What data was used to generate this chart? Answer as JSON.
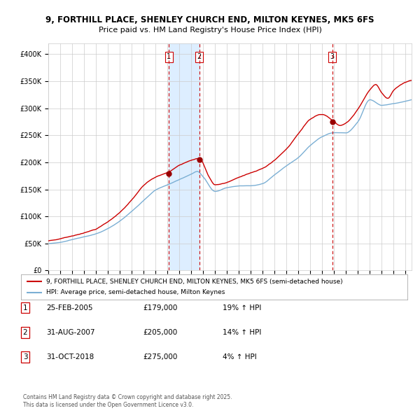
{
  "title_line1": "9, FORTHILL PLACE, SHENLEY CHURCH END, MILTON KEYNES, MK5 6FS",
  "title_line2": "Price paid vs. HM Land Registry's House Price Index (HPI)",
  "ylim": [
    0,
    420000
  ],
  "yticks": [
    0,
    50000,
    100000,
    150000,
    200000,
    250000,
    300000,
    350000,
    400000
  ],
  "ytick_labels": [
    "£0",
    "£50K",
    "£100K",
    "£150K",
    "£200K",
    "£250K",
    "£300K",
    "£350K",
    "£400K"
  ],
  "legend_line1": "9, FORTHILL PLACE, SHENLEY CHURCH END, MILTON KEYNES, MK5 6FS (semi-detached house)",
  "legend_line2": "HPI: Average price, semi-detached house, Milton Keynes",
  "sale_dates_display": [
    "25-FEB-2005",
    "31-AUG-2007",
    "31-OCT-2018"
  ],
  "sale_prices_display": [
    "£179,000",
    "£205,000",
    "£275,000"
  ],
  "sale_prices": [
    179000,
    205000,
    275000
  ],
  "sale_hpi": [
    "19% ↑ HPI",
    "14% ↑ HPI",
    "4% ↑ HPI"
  ],
  "sale_labels": [
    "1",
    "2",
    "3"
  ],
  "sale_year_floats": [
    2005.125,
    2007.667,
    2018.833
  ],
  "footnote1": "Contains HM Land Registry data © Crown copyright and database right 2025.",
  "footnote2": "This data is licensed under the Open Government Licence v3.0.",
  "red_color": "#cc0000",
  "blue_color": "#7bafd4",
  "shade_color": "#ddeeff",
  "grid_color": "#cccccc",
  "bg_color": "#ffffff",
  "title_fontsize": 8.5,
  "subtitle_fontsize": 8,
  "tick_fontsize": 7,
  "legend_fontsize": 6.5,
  "table_fontsize": 7.5,
  "footnote_fontsize": 5.5
}
